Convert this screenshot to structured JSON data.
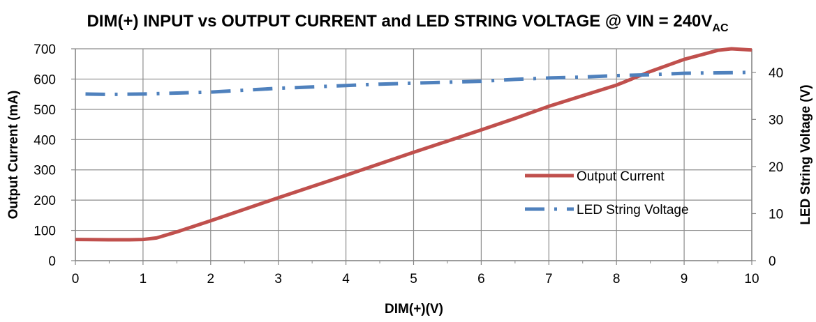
{
  "chart_data": {
    "type": "line",
    "title": "DIM(+) INPUT vs OUTPUT CURRENT and LED STRING VOLTAGE @ VIN = 240V",
    "title_subscript": "AC",
    "xlabel": "DIM(+)(V)",
    "ylabel_left": "Output Current (mA)",
    "ylabel_right": "LED String Voltage (V)",
    "xlim": [
      0,
      10
    ],
    "ylim_left": [
      0,
      700
    ],
    "ylim_right": [
      0,
      45
    ],
    "x_ticks": [
      "0",
      "1",
      "2",
      "3",
      "4",
      "5",
      "6",
      "7",
      "8",
      "9",
      "10"
    ],
    "y_left_ticks": [
      "0",
      "100",
      "200",
      "300",
      "400",
      "500",
      "600",
      "700"
    ],
    "y_right_ticks": [
      "0",
      "10",
      "20",
      "30",
      "40"
    ],
    "y_right_tick_values": [
      0,
      10,
      20,
      30,
      40
    ],
    "grid": true,
    "legend_position": "right",
    "series": [
      {
        "name": "Output Current",
        "axis": "left",
        "color": "#c0504d",
        "style": "solid",
        "x": [
          0,
          0.5,
          0.8,
          1.0,
          1.2,
          1.5,
          2,
          2.5,
          3,
          3.5,
          4,
          4.5,
          5,
          5.5,
          6,
          6.5,
          7,
          7.5,
          8,
          8.5,
          9,
          9.5,
          9.7,
          10
        ],
        "y": [
          70,
          69,
          69,
          70,
          75,
          95,
          132,
          170,
          208,
          245,
          282,
          320,
          358,
          395,
          432,
          470,
          510,
          545,
          580,
          625,
          665,
          695,
          700,
          696
        ]
      },
      {
        "name": "LED String Voltage",
        "axis": "right",
        "color": "#4f81bd",
        "style": "dash-dot",
        "x": [
          0.15,
          0.5,
          1,
          1.5,
          2,
          2.5,
          3,
          3.5,
          4,
          4.5,
          5,
          5.5,
          6,
          6.5,
          7,
          7.5,
          8,
          8.5,
          9,
          9.5,
          10
        ],
        "y": [
          35.4,
          35.3,
          35.4,
          35.6,
          35.8,
          36.2,
          36.6,
          36.9,
          37.2,
          37.5,
          37.7,
          37.9,
          38.1,
          38.5,
          38.8,
          39.0,
          39.3,
          39.5,
          39.8,
          39.9,
          40.0
        ]
      }
    ]
  }
}
